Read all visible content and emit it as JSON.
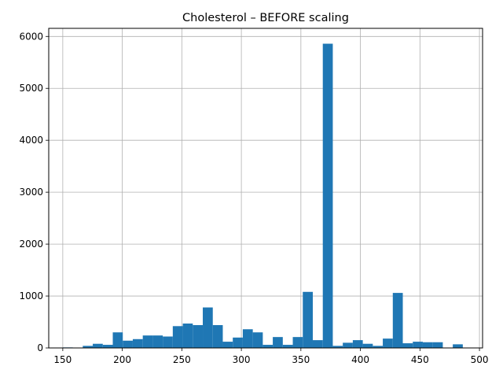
{
  "chart_data": {
    "type": "histogram",
    "title": "Cholesterol – BEFORE scaling",
    "xlabel": "",
    "ylabel": "",
    "xlim": [
      150,
      500
    ],
    "ylim": [
      0,
      6000
    ],
    "x_ticks": [
      150,
      200,
      250,
      300,
      350,
      400,
      450,
      500
    ],
    "y_ticks": [
      0,
      1000,
      2000,
      3000,
      4000,
      5000,
      6000
    ],
    "grid": true,
    "bar_color": "#1f77b4",
    "bins": [
      {
        "x0": 150,
        "x1": 158.4,
        "count": 10
      },
      {
        "x0": 158.4,
        "x1": 166.8,
        "count": 5
      },
      {
        "x0": 166.8,
        "x1": 175.2,
        "count": 40
      },
      {
        "x0": 175.2,
        "x1": 183.6,
        "count": 80
      },
      {
        "x0": 183.6,
        "x1": 192,
        "count": 60
      },
      {
        "x0": 192,
        "x1": 200.4,
        "count": 300
      },
      {
        "x0": 200.4,
        "x1": 208.8,
        "count": 140
      },
      {
        "x0": 208.8,
        "x1": 217.2,
        "count": 170
      },
      {
        "x0": 217.2,
        "x1": 225.6,
        "count": 240
      },
      {
        "x0": 225.6,
        "x1": 234,
        "count": 240
      },
      {
        "x0": 234,
        "x1": 242.4,
        "count": 220
      },
      {
        "x0": 242.4,
        "x1": 250.8,
        "count": 420
      },
      {
        "x0": 250.8,
        "x1": 259.2,
        "count": 470
      },
      {
        "x0": 259.2,
        "x1": 267.6,
        "count": 440
      },
      {
        "x0": 267.6,
        "x1": 276,
        "count": 780
      },
      {
        "x0": 276,
        "x1": 284.4,
        "count": 440
      },
      {
        "x0": 284.4,
        "x1": 292.8,
        "count": 120
      },
      {
        "x0": 292.8,
        "x1": 301.2,
        "count": 200
      },
      {
        "x0": 301.2,
        "x1": 309.6,
        "count": 360
      },
      {
        "x0": 309.6,
        "x1": 318,
        "count": 300
      },
      {
        "x0": 318,
        "x1": 326.4,
        "count": 60
      },
      {
        "x0": 326.4,
        "x1": 334.8,
        "count": 210
      },
      {
        "x0": 334.8,
        "x1": 343.2,
        "count": 60
      },
      {
        "x0": 343.2,
        "x1": 351.6,
        "count": 210
      },
      {
        "x0": 351.6,
        "x1": 360,
        "count": 1080
      },
      {
        "x0": 360,
        "x1": 368.4,
        "count": 150
      },
      {
        "x0": 368.4,
        "x1": 376.8,
        "count": 5860
      },
      {
        "x0": 376.8,
        "x1": 385.2,
        "count": 40
      },
      {
        "x0": 385.2,
        "x1": 393.6,
        "count": 100
      },
      {
        "x0": 393.6,
        "x1": 402,
        "count": 150
      },
      {
        "x0": 402,
        "x1": 410.4,
        "count": 80
      },
      {
        "x0": 410.4,
        "x1": 418.8,
        "count": 40
      },
      {
        "x0": 418.8,
        "x1": 427.2,
        "count": 180
      },
      {
        "x0": 427.2,
        "x1": 435.6,
        "count": 1060
      },
      {
        "x0": 435.6,
        "x1": 444,
        "count": 90
      },
      {
        "x0": 444,
        "x1": 452.4,
        "count": 120
      },
      {
        "x0": 452.4,
        "x1": 460.8,
        "count": 110
      },
      {
        "x0": 460.8,
        "x1": 469.2,
        "count": 110
      },
      {
        "x0": 469.2,
        "x1": 477.6,
        "count": 0
      },
      {
        "x0": 477.6,
        "x1": 486,
        "count": 70
      }
    ]
  }
}
